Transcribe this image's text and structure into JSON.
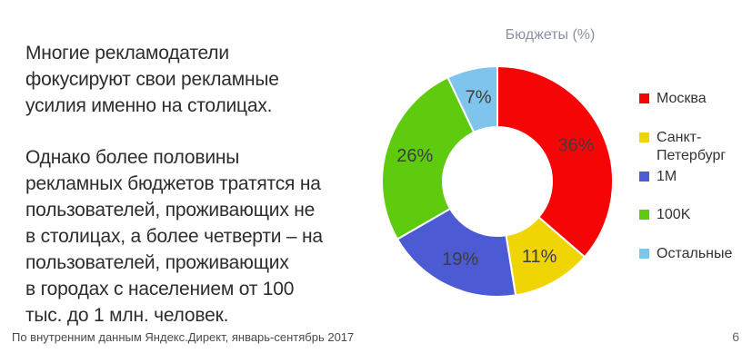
{
  "slide": {
    "paragraph1": "Многие рекламодатели\nфокусируют свои рекламные\nусилия именно на столицах.",
    "paragraph2": "Однако более половины\nрекламных бюджетов тратятся на\nпользователей, проживающих не\nв столицах, а более четверти – на\nпользователей, проживающих\nв городах с населением от 100\nтыс. до 1 млн. человек.",
    "footer_source": "По внутренним данным Яндекс.Директ, январь-сентябрь 2017",
    "page_number": "6"
  },
  "chart_data": {
    "type": "pie",
    "subtype": "donut",
    "title": "Бюджеты (%)",
    "start_angle_deg": 0,
    "direction": "clockwise",
    "legend_position": "right",
    "label_color": "#3d3d3d",
    "separator_color": "#ffffff",
    "slices": [
      {
        "label": "Москва",
        "value": 36,
        "display": "36%",
        "color": "#f50505"
      },
      {
        "label": "Санкт-Петербург",
        "value": 11,
        "display": "11%",
        "color": "#f0d505"
      },
      {
        "label": "1M",
        "value": 19,
        "display": "19%",
        "color": "#4c5ad3"
      },
      {
        "label": "100K",
        "value": 26,
        "display": "26%",
        "color": "#5ecb0f"
      },
      {
        "label": "Остальные",
        "value": 7,
        "display": "7%",
        "color": "#7ec4ec"
      }
    ]
  }
}
